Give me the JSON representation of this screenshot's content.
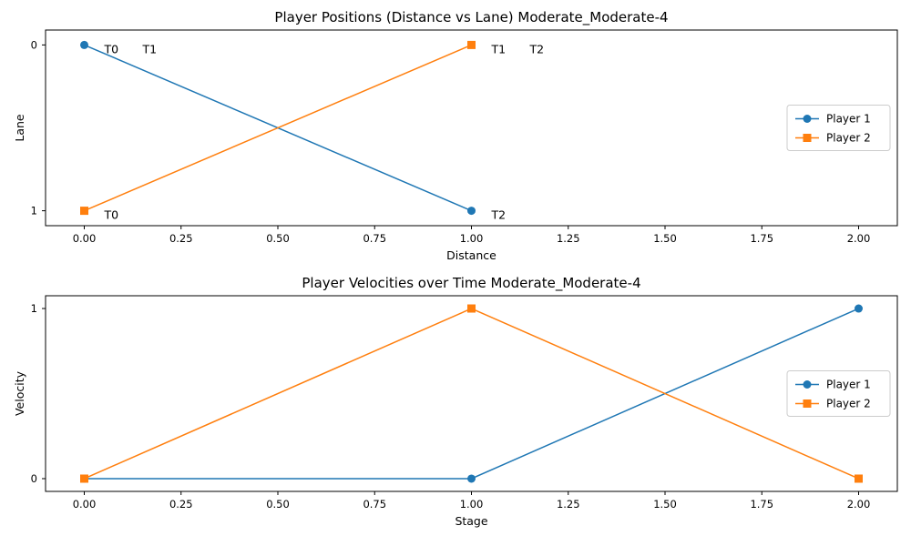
{
  "chart_data": [
    {
      "type": "line",
      "title": "Player Positions (Distance vs Lane) Moderate_Moderate-4",
      "xlabel": "Distance",
      "ylabel": "Lane",
      "xlim": [
        -0.1,
        2.1
      ],
      "ylim": [
        1.09,
        -0.09
      ],
      "y_inverted": true,
      "xticks": [
        0.0,
        0.25,
        0.5,
        0.75,
        1.0,
        1.25,
        1.5,
        1.75,
        2.0
      ],
      "xtick_labels": [
        "0.00",
        "0.25",
        "0.50",
        "0.75",
        "1.00",
        "1.25",
        "1.50",
        "1.75",
        "2.00"
      ],
      "yticks": [
        0,
        1
      ],
      "ytick_labels": [
        "0",
        "1"
      ],
      "grid": false,
      "legend_position": "center-right",
      "series": [
        {
          "name": "Player 1",
          "color": "#1f77b4",
          "marker": "circle",
          "x": [
            0,
            1
          ],
          "y": [
            0,
            1
          ]
        },
        {
          "name": "Player 2",
          "color": "#ff7f0e",
          "marker": "square",
          "x": [
            0,
            1
          ],
          "y": [
            1,
            0
          ]
        }
      ],
      "annotations": [
        {
          "text": "T0",
          "x": 0,
          "y": 0,
          "offset_order": 0
        },
        {
          "text": "T1",
          "x": 0,
          "y": 0,
          "offset_order": 1
        },
        {
          "text": "T0",
          "x": 0,
          "y": 1,
          "offset_order": 0
        },
        {
          "text": "T1",
          "x": 1,
          "y": 0,
          "offset_order": 0
        },
        {
          "text": "T2",
          "x": 1,
          "y": 0,
          "offset_order": 1
        },
        {
          "text": "T2",
          "x": 1,
          "y": 1,
          "offset_order": 0
        }
      ]
    },
    {
      "type": "line",
      "title": "Player Velocities over Time Moderate_Moderate-4",
      "xlabel": "Stage",
      "ylabel": "Velocity",
      "xlim": [
        -0.1,
        2.1
      ],
      "ylim": [
        -0.075,
        1.075
      ],
      "y_inverted": false,
      "xticks": [
        0.0,
        0.25,
        0.5,
        0.75,
        1.0,
        1.25,
        1.5,
        1.75,
        2.0
      ],
      "xtick_labels": [
        "0.00",
        "0.25",
        "0.50",
        "0.75",
        "1.00",
        "1.25",
        "1.50",
        "1.75",
        "2.00"
      ],
      "yticks": [
        0,
        1
      ],
      "ytick_labels": [
        "0",
        "1"
      ],
      "grid": false,
      "legend_position": "center-right",
      "series": [
        {
          "name": "Player 1",
          "color": "#1f77b4",
          "marker": "circle",
          "x": [
            0,
            1,
            2
          ],
          "y": [
            0,
            0,
            1
          ]
        },
        {
          "name": "Player 2",
          "color": "#ff7f0e",
          "marker": "square",
          "x": [
            0,
            1,
            2
          ],
          "y": [
            0,
            1,
            0
          ]
        }
      ],
      "annotations": []
    }
  ]
}
